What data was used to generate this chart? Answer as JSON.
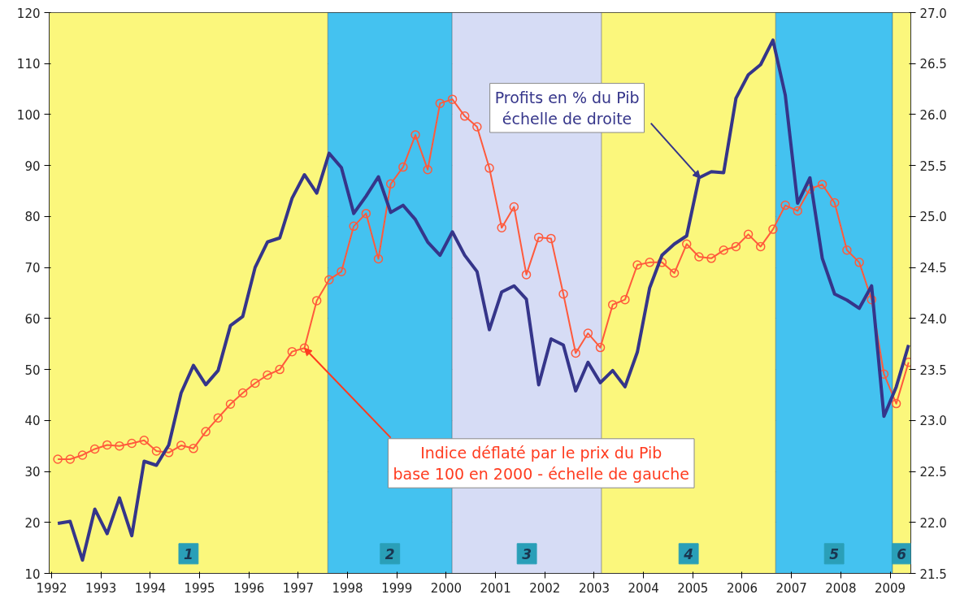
{
  "chart_data": {
    "type": "line",
    "x": [
      1992.125,
      1992.375,
      1992.625,
      1992.875,
      1993.125,
      1993.375,
      1993.625,
      1993.875,
      1994.125,
      1994.375,
      1994.625,
      1994.875,
      1995.125,
      1995.375,
      1995.625,
      1995.875,
      1996.125,
      1996.375,
      1996.625,
      1996.875,
      1997.125,
      1997.375,
      1997.625,
      1997.875,
      1998.125,
      1998.375,
      1998.625,
      1998.875,
      1999.125,
      1999.375,
      1999.625,
      1999.875,
      2000.125,
      2000.375,
      2000.625,
      2000.875,
      2001.125,
      2001.375,
      2001.625,
      2001.875,
      2002.125,
      2002.375,
      2002.625,
      2002.875,
      2003.125,
      2003.375,
      2003.625,
      2003.875,
      2004.125,
      2004.375,
      2004.625,
      2004.875,
      2005.125,
      2005.375,
      2005.625,
      2005.875,
      2006.125,
      2006.375,
      2006.625,
      2006.875,
      2007.125,
      2007.375,
      2007.625,
      2007.875,
      2008.125,
      2008.375,
      2008.625,
      2008.875,
      2009.125,
      2009.375
    ],
    "series": [
      {
        "color": "#ff5a3c",
        "marker": "circle",
        "values": [
          32.4,
          32.4,
          33.2,
          34.4,
          35.2,
          35.0,
          35.5,
          36.1,
          34.0,
          33.7,
          35.1,
          34.5,
          37.8,
          40.5,
          43.2,
          45.4,
          47.3,
          48.9,
          50.0,
          53.5,
          54.2,
          63.5,
          67.6,
          69.2,
          78.1,
          80.6,
          71.7,
          86.4,
          89.7,
          96.0,
          89.2,
          102.2,
          103.0,
          99.7,
          97.6,
          89.5,
          77.8,
          81.9,
          68.6,
          75.9,
          75.7,
          64.8,
          53.2,
          57.1,
          54.3,
          62.7,
          63.7,
          70.5,
          71.0,
          71.0,
          68.9,
          74.6,
          72.1,
          71.8,
          73.4,
          74.1,
          76.5,
          74.1,
          77.5,
          82.2,
          81.1,
          85.4,
          86.3,
          82.7,
          73.4,
          71.0,
          63.7,
          49.1,
          43.3,
          51.4
        ]
      },
      {
        "color": "#35358a",
        "axis": "y2",
        "marker": "none",
        "values": [
          21.99,
          22.01,
          21.63,
          22.13,
          21.89,
          22.24,
          21.87,
          22.6,
          22.56,
          22.76,
          23.27,
          23.54,
          23.35,
          23.49,
          23.93,
          24.02,
          24.5,
          24.75,
          24.79,
          25.18,
          25.41,
          25.23,
          25.62,
          25.48,
          25.03,
          25.2,
          25.39,
          25.04,
          25.11,
          24.97,
          24.75,
          24.62,
          24.85,
          24.62,
          24.46,
          23.89,
          24.26,
          24.32,
          24.19,
          23.35,
          23.8,
          23.74,
          23.29,
          23.57,
          23.37,
          23.49,
          23.33,
          23.67,
          24.3,
          24.62,
          24.73,
          24.81,
          25.38,
          25.44,
          25.43,
          26.16,
          26.39,
          26.49,
          26.73,
          26.19,
          25.13,
          25.38,
          24.59,
          24.24,
          24.18,
          24.1,
          24.32,
          23.04,
          23.33,
          23.74
        ]
      }
    ],
    "xlim": [
      1991.95,
      2009.42
    ],
    "xticks": [
      1992,
      1993,
      1994,
      1995,
      1996,
      1997,
      1998,
      1999,
      2000,
      2001,
      2002,
      2003,
      2004,
      2005,
      2006,
      2007,
      2008,
      2009
    ],
    "ylim": [
      10,
      120
    ],
    "yticks": [
      10,
      20,
      30,
      40,
      50,
      60,
      70,
      80,
      90,
      100,
      110,
      120
    ],
    "y2lim": [
      21.5,
      27.0
    ],
    "y2ticks": [
      {
        "value": 21.5,
        "label": "21.5"
      },
      {
        "value": 22,
        "label": "22.0"
      },
      {
        "value": 22.5,
        "label": "22.5"
      },
      {
        "value": 23,
        "label": "23.0"
      },
      {
        "value": 23.5,
        "label": "23.5"
      },
      {
        "value": 24,
        "label": "24.0"
      },
      {
        "value": 24.5,
        "label": "24.5"
      },
      {
        "value": 25,
        "label": "25.0"
      },
      {
        "value": 25.5,
        "label": "25.5"
      },
      {
        "value": 26,
        "label": "26.0"
      },
      {
        "value": 26.5,
        "label": "26.5"
      },
      {
        "value": 27,
        "label": "27.0"
      }
    ],
    "grid": "y",
    "bands": [
      {
        "axis": "x",
        "from": 1991.95,
        "to": 1997.6,
        "label": "1",
        "color": "#fbf77c"
      },
      {
        "axis": "x",
        "from": 1997.6,
        "to": 2000.12,
        "label": "2",
        "color": "#44c2f0"
      },
      {
        "axis": "x",
        "from": 2000.12,
        "to": 2003.15,
        "label": "3",
        "color": "#d6dcf5"
      },
      {
        "axis": "x",
        "from": 2003.15,
        "to": 2006.68,
        "label": "4",
        "color": "#fbf77c"
      },
      {
        "axis": "x",
        "from": 2006.68,
        "to": 2009.05,
        "label": "5",
        "color": "#44c2f0"
      },
      {
        "axis": "x",
        "from": 2009.05,
        "to": 2009.42,
        "label": "6",
        "color": "#fbf77c"
      }
    ],
    "annotations": [
      {
        "text": "Profits en % du Pib\néchelle de droite",
        "x": 2005.15,
        "y": 87.5
      },
      {
        "text": "Indice déflaté par le prix du Pib\nbase 100 en 2000 - échelle de gauche",
        "x": 1997.125,
        "y": 54.2
      }
    ]
  }
}
